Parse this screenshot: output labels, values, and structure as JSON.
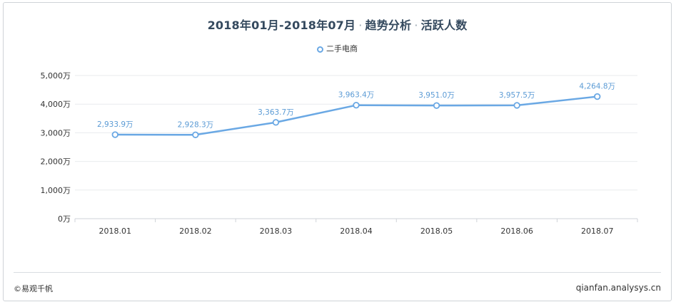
{
  "header": {
    "title_part1": "2018年01月-2018年07月",
    "separator": "·",
    "title_part2": "趋势分析",
    "title_part3": "活跃人数"
  },
  "footer": {
    "copyright": "©易观千帆",
    "site": "qianfan.analysys.cn"
  },
  "colors": {
    "line": "#6aa8e4",
    "label": "#5b9bd5",
    "grid": "#e8ebee",
    "axis_text": "#333333"
  },
  "chart_data": {
    "type": "line",
    "categories": [
      "2018.01",
      "2018.02",
      "2018.03",
      "2018.04",
      "2018.05",
      "2018.06",
      "2018.07"
    ],
    "series": [
      {
        "name": "二手电商",
        "values": [
          2933.9,
          2928.3,
          3363.7,
          3963.4,
          3951.0,
          3957.5,
          4264.8
        ],
        "data_labels": [
          "2,933.9万",
          "2,928.3万",
          "3,363.7万",
          "3,963.4万",
          "3,951.0万",
          "3,957.5万",
          "4,264.8万"
        ]
      }
    ],
    "y_ticks": [
      "0万",
      "1,000万",
      "2,000万",
      "3,000万",
      "4,000万",
      "5,000万"
    ],
    "y_tick_values": [
      0,
      1000,
      2000,
      3000,
      4000,
      5000
    ],
    "ylim": [
      0,
      5000
    ],
    "grid": true,
    "legend_position": "top-center"
  }
}
